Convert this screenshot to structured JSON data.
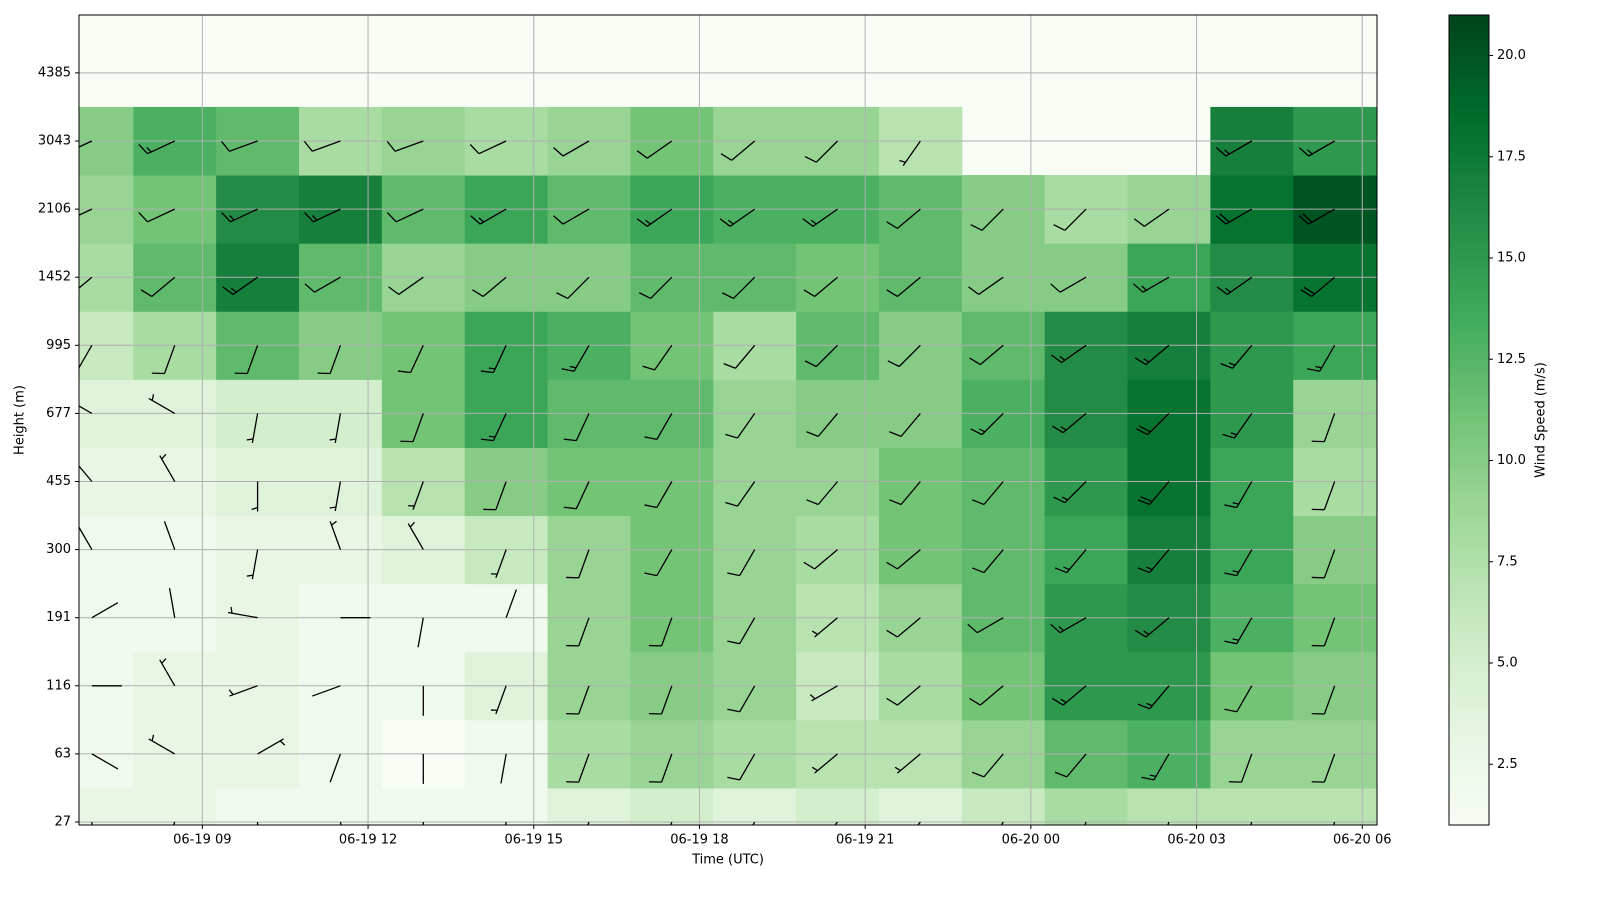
{
  "chart_data": {
    "type": "barbs",
    "x_label": "Time (UTC)",
    "y_label": "Height (m)",
    "colorbar_label": "Wind Speed (m/s)",
    "x": [
      "06-19 07:00",
      "06-19 08:30",
      "06-19 10:00",
      "06-19 11:30",
      "06-19 13:00",
      "06-19 14:30",
      "06-19 16:00",
      "06-19 17:30",
      "06-19 19:00",
      "06-19 20:30",
      "06-19 22:00",
      "06-19 23:30",
      "06-20 01:00",
      "06-20 02:30",
      "06-20 04:00",
      "06-20 05:30"
    ],
    "categories": [
      27,
      63,
      116,
      191,
      300,
      455,
      677,
      995,
      1452,
      2106,
      3043,
      4385
    ],
    "xlim": [
      "06-19 06:46",
      "06-20 06:16"
    ],
    "xticks": [
      {
        "value": "06-19 09:00",
        "label": "06-19 09"
      },
      {
        "value": "06-19 12:00",
        "label": "06-19 12"
      },
      {
        "value": "06-19 15:00",
        "label": "06-19 15"
      },
      {
        "value": "06-19 18:00",
        "label": "06-19 18"
      },
      {
        "value": "06-19 21:00",
        "label": "06-19 21"
      },
      {
        "value": "06-20 00:00",
        "label": "06-20 00"
      },
      {
        "value": "06-20 03:00",
        "label": "06-20 03"
      },
      {
        "value": "06-20 06:00",
        "label": "06-20 06"
      }
    ],
    "speed": [
      [
        3,
        3,
        2,
        2,
        2,
        2,
        4,
        5,
        4,
        5,
        4,
        6,
        8,
        7,
        7,
        7
      ],
      [
        2,
        3,
        3,
        2,
        1,
        2,
        8,
        9,
        8,
        7,
        7,
        9,
        12,
        13,
        9,
        9
      ],
      [
        2,
        3,
        3,
        2,
        2,
        4,
        9,
        10,
        9,
        6,
        8,
        11,
        15,
        15,
        11,
        10
      ],
      [
        2,
        2,
        3,
        2,
        2,
        2,
        9,
        11,
        9,
        7,
        9,
        12,
        15,
        16,
        13,
        11
      ],
      [
        2,
        2,
        3,
        3,
        4,
        6,
        9,
        11,
        9,
        8,
        11,
        12,
        14,
        17,
        14,
        10
      ],
      [
        3,
        3,
        4,
        4,
        7,
        10,
        11,
        11,
        9,
        9,
        11,
        12,
        15,
        18,
        14,
        8
      ],
      [
        4,
        4,
        5,
        5,
        11,
        14,
        12,
        12,
        9,
        10,
        10,
        13,
        16,
        18,
        15,
        9
      ],
      [
        6,
        8,
        12,
        10,
        11,
        14,
        13,
        11,
        8,
        12,
        10,
        12,
        16,
        17,
        15,
        14
      ],
      [
        8,
        12,
        17,
        12,
        9,
        10,
        10,
        12,
        12,
        11,
        12,
        10,
        10,
        14,
        16,
        18
      ],
      [
        9,
        11,
        16,
        17,
        12,
        14,
        12,
        14,
        13,
        13,
        12,
        10,
        8,
        9,
        18,
        20
      ],
      [
        10,
        13,
        12,
        8,
        9,
        8,
        9,
        11,
        9,
        9,
        7,
        null,
        null,
        null,
        17,
        15
      ],
      [
        null,
        null,
        null,
        null,
        null,
        null,
        null,
        null,
        null,
        null,
        null,
        null,
        null,
        null,
        null,
        null
      ]
    ],
    "direction": [
      [
        180,
        200,
        180,
        170,
        180,
        190,
        200,
        200,
        210,
        220,
        220,
        210,
        200,
        200,
        200,
        200
      ],
      [
        120,
        300,
        60,
        200,
        180,
        190,
        200,
        200,
        210,
        230,
        230,
        220,
        220,
        210,
        200,
        200
      ],
      [
        90,
        330,
        250,
        250,
        180,
        200,
        200,
        200,
        210,
        240,
        230,
        230,
        230,
        220,
        210,
        200
      ],
      [
        60,
        350,
        280,
        90,
        190,
        20,
        200,
        200,
        210,
        230,
        230,
        240,
        240,
        230,
        210,
        200
      ],
      [
        330,
        340,
        190,
        340,
        330,
        200,
        200,
        210,
        210,
        230,
        230,
        220,
        220,
        220,
        210,
        200
      ],
      [
        320,
        330,
        180,
        190,
        200,
        200,
        205,
        210,
        215,
        220,
        220,
        220,
        225,
        220,
        210,
        200
      ],
      [
        300,
        300,
        190,
        190,
        200,
        205,
        205,
        210,
        215,
        220,
        220,
        225,
        230,
        225,
        215,
        200
      ],
      [
        210,
        200,
        200,
        200,
        205,
        205,
        210,
        215,
        220,
        225,
        225,
        230,
        235,
        230,
        220,
        210
      ],
      [
        230,
        230,
        235,
        240,
        235,
        230,
        225,
        225,
        225,
        230,
        230,
        235,
        240,
        240,
        235,
        230
      ],
      [
        245,
        245,
        245,
        245,
        245,
        240,
        240,
        235,
        235,
        235,
        230,
        225,
        225,
        235,
        240,
        240
      ],
      [
        245,
        245,
        250,
        250,
        250,
        245,
        240,
        235,
        230,
        225,
        215,
        null,
        null,
        null,
        240,
        240
      ],
      [
        null,
        null,
        null,
        null,
        null,
        null,
        null,
        null,
        null,
        null,
        null,
        null,
        null,
        null,
        null,
        null
      ]
    ],
    "clim": [
      1,
      21
    ],
    "cticks": [
      {
        "value": 2.5,
        "label": "2.5"
      },
      {
        "value": 5,
        "label": "5.0"
      },
      {
        "value": 7.5,
        "label": "7.5"
      },
      {
        "value": 10,
        "label": "10.0"
      },
      {
        "value": 12.5,
        "label": "12.5"
      },
      {
        "value": 15,
        "label": "15.0"
      },
      {
        "value": 17.5,
        "label": "17.5"
      },
      {
        "value": 20,
        "label": "20.0"
      }
    ],
    "colormap": [
      "#f7fcf5",
      "#e5f5e0",
      "#c7e9c0",
      "#a1d99b",
      "#74c476",
      "#41ab5d",
      "#238b45",
      "#006d2c",
      "#00441b"
    ],
    "grid": true
  }
}
